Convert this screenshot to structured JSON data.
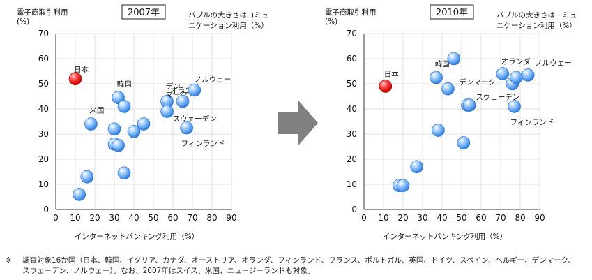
{
  "arrow": {
    "color": "#808080"
  },
  "chart_data": [
    {
      "type": "scatter",
      "title": "2007年",
      "ylabel": "電子商取引利用\n(%)",
      "xlabel": "インターネットバンキング利用（%）",
      "note": "バブルの大きさはコミュ\nニケーション利用（%）",
      "xlim": [
        0,
        90
      ],
      "ylim": [
        0,
        70
      ],
      "xticks": [
        "0",
        "10",
        "20",
        "30",
        "40",
        "50",
        "60",
        "70",
        "80",
        "90"
      ],
      "yticks": [
        "0",
        "10",
        "20",
        "30",
        "40",
        "50",
        "60",
        "70"
      ],
      "grid": true,
      "colors": {
        "highlight": "#e01818",
        "default": "#3f8fe8"
      },
      "points": [
        {
          "x": 10,
          "y": 52,
          "label": "日本",
          "highlight": true
        },
        {
          "x": 18,
          "y": 34,
          "label": "米国"
        },
        {
          "x": 12,
          "y": 6
        },
        {
          "x": 16,
          "y": 13
        },
        {
          "x": 30,
          "y": 26
        },
        {
          "x": 30,
          "y": 32
        },
        {
          "x": 32,
          "y": 25.5
        },
        {
          "x": 32,
          "y": 44.5,
          "label": "韓国"
        },
        {
          "x": 35,
          "y": 41
        },
        {
          "x": 35,
          "y": 14.5
        },
        {
          "x": 40,
          "y": 31
        },
        {
          "x": 45,
          "y": 34
        },
        {
          "x": 57,
          "y": 43,
          "label": "デン\nマーク"
        },
        {
          "x": 57,
          "y": 39,
          "label": "スウェーデン"
        },
        {
          "x": 65,
          "y": 43,
          "label": "オランダ"
        },
        {
          "x": 67,
          "y": 32.5,
          "label": "フィンランド"
        },
        {
          "x": 71,
          "y": 47.5,
          "label": "ノルウェー"
        }
      ]
    },
    {
      "type": "scatter",
      "title": "2010年",
      "ylabel": "電子商取引利用\n(%)",
      "xlabel": "インターネットバンキング利用（%）",
      "note": "バブルの大きさはコミュ\nニケーション利用（%）",
      "xlim": [
        0,
        90
      ],
      "ylim": [
        0,
        70
      ],
      "xticks": [
        "0",
        "10",
        "20",
        "30",
        "40",
        "50",
        "60",
        "70",
        "80",
        "90"
      ],
      "yticks": [
        "0",
        "10",
        "20",
        "30",
        "40",
        "50",
        "60",
        "70"
      ],
      "grid": true,
      "colors": {
        "highlight": "#e01818",
        "default": "#3f8fe8"
      },
      "points": [
        {
          "x": 11,
          "y": 49,
          "label": "日本",
          "highlight": true
        },
        {
          "x": 18,
          "y": 9.5
        },
        {
          "x": 20,
          "y": 9.5
        },
        {
          "x": 27,
          "y": 17
        },
        {
          "x": 37,
          "y": 52.5,
          "label": "韓国"
        },
        {
          "x": 38,
          "y": 31.5
        },
        {
          "x": 43,
          "y": 48,
          "label": "デンマーク"
        },
        {
          "x": 46,
          "y": 60
        },
        {
          "x": 51,
          "y": 26.5
        },
        {
          "x": 53,
          "y": 41.5,
          "label": "スウェーデン"
        },
        {
          "x": 54,
          "y": 41.5
        },
        {
          "x": 71,
          "y": 54,
          "label": "オランダ"
        },
        {
          "x": 76,
          "y": 50
        },
        {
          "x": 77,
          "y": 41,
          "label": "フィンランド"
        },
        {
          "x": 78,
          "y": 52.5
        },
        {
          "x": 84,
          "y": 53.5,
          "label": "ノルウェー"
        }
      ]
    }
  ],
  "footnote": {
    "mark": "※",
    "text": "調査対象16か国（日本、韓国、イタリア、カナダ、オーストリア、オランダ、フィンランド、フランス、ポルトガル、英国、ドイツ、スペイン、ベルギー、デンマーク、\nスウェーデン、ノルウェー）。なお、2007年はスイス、米国、ニュージーランドも対象。"
  }
}
